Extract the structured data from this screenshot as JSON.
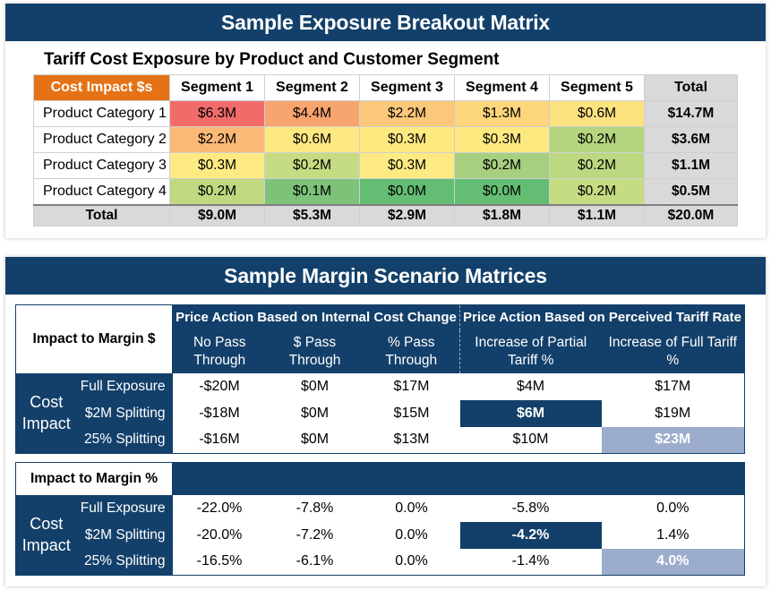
{
  "top": {
    "banner": "Sample Exposure Breakout Matrix",
    "subtitle": "Tariff Cost Exposure by Product and Customer Segment",
    "corner": "Cost Impact $s",
    "headers": [
      "Segment 1",
      "Segment 2",
      "Segment 3",
      "Segment 4",
      "Segment 5",
      "Total"
    ],
    "rows": [
      {
        "label": "Product Category 1",
        "cells": [
          "$6.3M",
          "$4.4M",
          "$2.2M",
          "$1.3M",
          "$0.6M"
        ],
        "colors": [
          "#f26b6b",
          "#f7a46f",
          "#fbc77a",
          "#fcd57c",
          "#fde280"
        ],
        "total": "$14.7M"
      },
      {
        "label": "Product Category 2",
        "cells": [
          "$2.2M",
          "$0.6M",
          "$0.3M",
          "$0.3M",
          "$0.2M"
        ],
        "colors": [
          "#fbb977",
          "#fde780",
          "#fde980",
          "#fde980",
          "#b5d47f"
        ],
        "total": "$3.6M"
      },
      {
        "label": "Product Category 3",
        "cells": [
          "$0.3M",
          "$0.2M",
          "$0.3M",
          "$0.2M",
          "$0.2M"
        ],
        "colors": [
          "#feea83",
          "#c5dc82",
          "#feea83",
          "#a6cf7f",
          "#bcd881"
        ],
        "total": "$1.1M"
      },
      {
        "label": "Product Category 4",
        "cells": [
          "$0.2M",
          "$0.1M",
          "$0.0M",
          "$0.0M",
          "$0.2M"
        ],
        "colors": [
          "#c0d981",
          "#7cc278",
          "#63bd73",
          "#63bd73",
          "#c6dc82"
        ],
        "total": "$0.5M"
      }
    ],
    "totals": {
      "label": "Total",
      "cells": [
        "$9.0M",
        "$5.3M",
        "$2.9M",
        "$1.8M",
        "$1.1M",
        "$20.0M"
      ]
    }
  },
  "bottom": {
    "banner": "Sample Margin Scenario Matrices",
    "group_internal": "Price Action Based on Internal Cost Change",
    "group_perceived": "Price Action Based on Perceived Tariff Rate",
    "subheaders": [
      "No Pass Through",
      "$ Pass Through",
      "% Pass Through",
      "Increase of Partial Tariff %",
      "Increase of Full Tariff %"
    ],
    "cost_impact": "Cost Impact",
    "m1": {
      "label": "Impact to Margin $",
      "rows": [
        {
          "label": "Full Exposure",
          "cells": [
            "-$20M",
            "$0M",
            "$17M",
            "$4M",
            "$17M"
          ]
        },
        {
          "label": "$2M Splitting",
          "cells": [
            "-$18M",
            "$0M",
            "$15M",
            "$6M",
            "$19M"
          ]
        },
        {
          "label": "25% Splitting",
          "cells": [
            "-$16M",
            "$0M",
            "$13M",
            "$10M",
            "$23M"
          ]
        }
      ]
    },
    "m2": {
      "label": "Impact to Margin %",
      "rows": [
        {
          "label": "Full Exposure",
          "cells": [
            "-22.0%",
            "-7.8%",
            "0.0%",
            "-5.8%",
            "0.0%"
          ]
        },
        {
          "label": "$2M Splitting",
          "cells": [
            "-20.0%",
            "-7.2%",
            "0.0%",
            "-4.2%",
            "1.4%"
          ]
        },
        {
          "label": "25% Splitting",
          "cells": [
            "-16.5%",
            "-6.1%",
            "0.0%",
            "-1.4%",
            "4.0%"
          ]
        }
      ]
    },
    "highlight_dark": "#13406a",
    "highlight_light": "#9caccd"
  }
}
